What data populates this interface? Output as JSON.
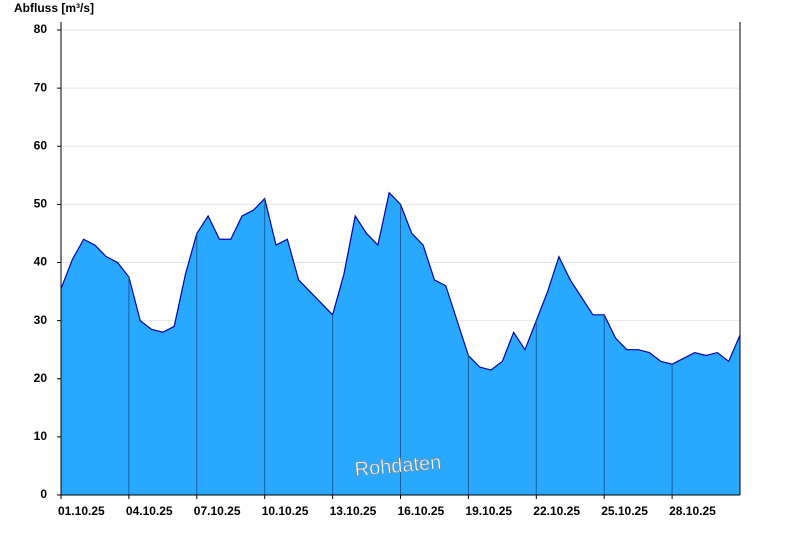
{
  "chart_data": {
    "type": "area",
    "y_label": "Abfluss [m³/s]",
    "watermark": "Rohdaten",
    "color": "#29a8ff",
    "line_color": "#0000aa",
    "x": [
      0,
      0.5,
      1,
      1.5,
      2,
      2.5,
      3,
      3.5,
      4,
      4.5,
      5,
      5.5,
      6,
      6.5,
      7,
      7.5,
      8,
      8.5,
      9,
      9.5,
      10,
      10.5,
      11,
      11.5,
      12,
      12.5,
      13,
      13.5,
      14,
      14.5,
      15,
      15.5,
      16,
      16.5,
      17,
      17.5,
      18,
      18.5,
      19,
      19.5,
      20,
      20.5,
      21,
      21.5,
      22,
      22.5,
      23,
      23.5,
      24,
      24.5,
      25,
      25.5,
      26,
      26.5,
      27,
      27.5,
      28,
      28.5,
      29,
      29.5,
      30
    ],
    "values": [
      35.5,
      40.5,
      44,
      43,
      41,
      40,
      37.5,
      30,
      28.5,
      28,
      29,
      38,
      45,
      48,
      44,
      44,
      48,
      49,
      51,
      43,
      44,
      37,
      35,
      33,
      31,
      38,
      48,
      45,
      43,
      52,
      50,
      45,
      43,
      37,
      36,
      30,
      24,
      22,
      21.5,
      23,
      28,
      25,
      30,
      35,
      41,
      37,
      34,
      31,
      31,
      27,
      25,
      25,
      24.5,
      23,
      22.5,
      23.5,
      24.5,
      24,
      24.5,
      23,
      27.5
    ],
    "xlim": [
      0,
      30
    ],
    "xticks": [
      {
        "value": 0,
        "label": "01.10.25"
      },
      {
        "value": 3,
        "label": "04.10.25"
      },
      {
        "value": 6,
        "label": "07.10.25"
      },
      {
        "value": 9,
        "label": "10.10.25"
      },
      {
        "value": 12,
        "label": "13.10.25"
      },
      {
        "value": 15,
        "label": "16.10.25"
      },
      {
        "value": 18,
        "label": "19.10.25"
      },
      {
        "value": 21,
        "label": "22.10.25"
      },
      {
        "value": 24,
        "label": "25.10.25"
      },
      {
        "value": 27,
        "label": "28.10.25"
      }
    ],
    "ylim": [
      0,
      80
    ],
    "yticks": [
      0,
      10,
      20,
      30,
      40,
      50,
      60,
      70,
      80
    ],
    "grid": true
  }
}
